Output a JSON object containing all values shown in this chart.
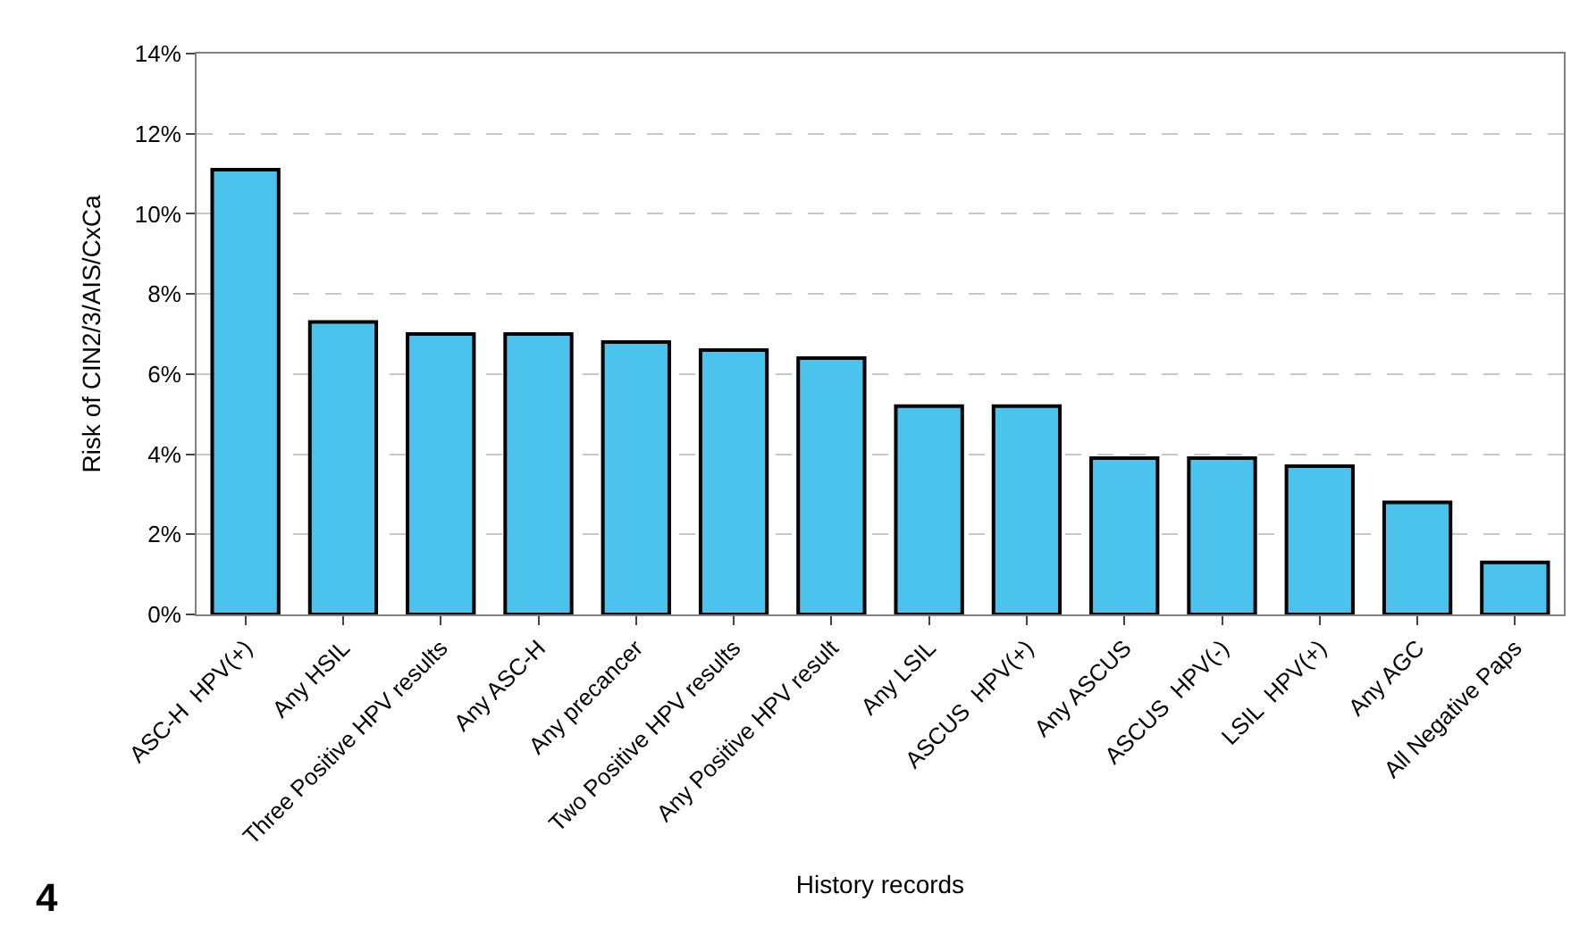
{
  "chart_data": {
    "type": "bar",
    "xlabel": "History records",
    "ylabel": "Risk of CIN2/3/AIS/CxCa",
    "categories": [
      "ASC-H  HPV(+)",
      "Any HSIL",
      "Three Positive HPV results",
      "Any ASC-H",
      "Any precancer",
      "Two Positive HPV results",
      "Any Positive HPV result",
      "Any LSIL",
      "ASCUS  HPV(+)",
      "Any ASCUS",
      "ASCUS  HPV(-)",
      "LSIL  HPV(+)",
      "Any AGC",
      "All Negative Paps"
    ],
    "values": [
      11.1,
      7.3,
      7.0,
      7.0,
      6.8,
      6.6,
      6.4,
      5.2,
      5.2,
      3.9,
      3.9,
      3.7,
      2.8,
      1.3
    ],
    "color": "#4cc3ec",
    "ylim": [
      0,
      14
    ],
    "yticks": [
      {
        "value": 0,
        "label": "0%"
      },
      {
        "value": 2,
        "label": "2%"
      },
      {
        "value": 4,
        "label": "4%"
      },
      {
        "value": 6,
        "label": "6%"
      },
      {
        "value": 8,
        "label": "8%"
      },
      {
        "value": 10,
        "label": "10%"
      },
      {
        "value": 12,
        "label": "12%"
      },
      {
        "value": 14,
        "label": "14%"
      }
    ],
    "grid": "y",
    "line_style": "dashed",
    "annotations": [
      "4"
    ]
  }
}
